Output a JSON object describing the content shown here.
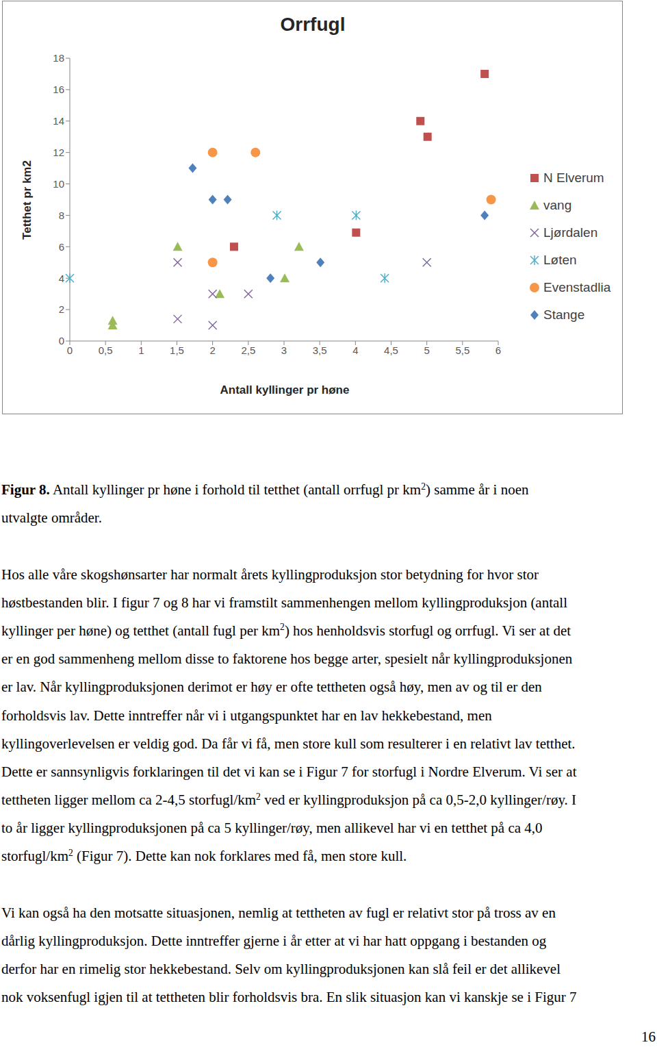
{
  "chart_data": {
    "type": "scatter",
    "title": "Orrfugl",
    "x_label": "Antall kyllinger pr høne",
    "y_label": "Tetthet pr km2",
    "xlim": [
      0,
      6
    ],
    "xticks": [
      0,
      {
        "value": 0.5,
        "label": "0,5"
      },
      1,
      {
        "value": 1.5,
        "label": "1,5"
      },
      2,
      {
        "value": 2.5,
        "label": "2,5"
      },
      3,
      {
        "value": 3.5,
        "label": "3,5"
      },
      4,
      {
        "value": 4.5,
        "label": "4,5"
      },
      5,
      {
        "value": 5.5,
        "label": "5,5"
      },
      6
    ],
    "ylim": [
      0,
      18
    ],
    "yticks": [
      0,
      2,
      4,
      6,
      8,
      10,
      12,
      14,
      16,
      18
    ],
    "grid": false,
    "legend": "right",
    "series": [
      {
        "name": "N Elverum",
        "color": "#C0504D",
        "marker": "square",
        "x": [
          5.81,
          4.91,
          5.01,
          2.3,
          4.01
        ],
        "y": [
          17.0,
          14.0,
          13.0,
          6.0,
          6.9
        ]
      },
      {
        "name": "vang",
        "color": "#9BBB59",
        "marker": "triangle",
        "x": [
          0.6,
          0.6,
          1.51,
          2.1,
          3.21,
          3.01
        ],
        "y": [
          1.3,
          1.0,
          6.0,
          3.0,
          6.0,
          4.0
        ]
      },
      {
        "name": "Ljørdalen",
        "color": "#8064A2",
        "marker": "x",
        "x": [
          1.51,
          1.51,
          2.0,
          2.0,
          2.5,
          5.0
        ],
        "y": [
          5.0,
          1.4,
          3.0,
          1.0,
          3.0,
          5.0
        ]
      },
      {
        "name": "Løten",
        "color": "#4BACC6",
        "marker": "asterisk",
        "x": [
          0.0,
          2.9,
          4.01,
          4.41
        ],
        "y": [
          4.0,
          8.0,
          8.0,
          4.0
        ]
      },
      {
        "name": "Evenstadlia",
        "color": "#F79646",
        "marker": "circle",
        "x": [
          2.0,
          2.6,
          2.0,
          5.9
        ],
        "y": [
          12.0,
          12.0,
          5.0,
          9.0
        ]
      },
      {
        "name": "Stange",
        "color": "#4F81BD",
        "marker": "diamond",
        "x": [
          1.72,
          2.0,
          2.21,
          3.51,
          2.81,
          5.81
        ],
        "y": [
          11.0,
          9.0,
          9.0,
          5.0,
          4.0,
          8.0
        ]
      }
    ]
  },
  "document": {
    "caption": [
      [
        {
          "b": "Figur 8."
        },
        " Antall kyllinger pr høne i forhold til tetthet (antall orrfugl pr km",
        {
          "sup": "2"
        },
        ") samme år i noen"
      ],
      [
        "utvalgte områder."
      ]
    ],
    "paragraphs": [
      [
        [
          "Hos alle våre skogshønsarter har normalt årets kyllingproduksjon stor betydning for hvor stor"
        ],
        [
          "høstbestanden blir. I figur 7 og 8 har vi framstilt sammenhengen mellom kyllingproduksjon (antall"
        ],
        [
          "kyllinger per høne) og tetthet (antall fugl per km",
          {
            "sup": "2"
          },
          ") hos henholdsvis storfugl og orrfugl. Vi ser at det"
        ],
        [
          "er en god sammenheng mellom disse to faktorene hos begge arter, spesielt når kyllingproduksjonen"
        ],
        [
          "er lav. Når kyllingproduksjonen derimot er høy er ofte tettheten også høy, men av og til er den"
        ],
        [
          "forholdsvis lav. Dette inntreffer når vi i utgangspunktet har en lav hekkebestand, men"
        ],
        [
          "kyllingoverlevelsen er veldig god. Da får vi få, men store kull som resulterer i en relativt lav tetthet."
        ],
        [
          "Dette er sannsynligvis forklaringen til det vi kan se i Figur 7 for storfugl i Nordre Elverum. Vi ser at"
        ],
        [
          "tettheten ligger mellom ca 2-4,5 storfugl/km",
          {
            "sup": "2"
          },
          " ved er kyllingproduksjon på ca 0,5-2,0 kyllinger/røy. I"
        ],
        [
          "to år ligger kyllingproduksjonen på ca 5 kyllinger/røy, men allikevel har vi en tetthet på ca 4,0"
        ],
        [
          "storfugl/km",
          {
            "sup": "2"
          },
          " (Figur 7). Dette kan nok forklares med få, men store kull."
        ]
      ],
      [
        [
          "Vi kan også ha den motsatte situasjonen, nemlig at tettheten av fugl er relativt stor på tross av en"
        ],
        [
          "dårlig kyllingproduksjon. Dette inntreffer gjerne i år etter at vi har hatt oppgang i bestanden og"
        ],
        [
          "derfor har en rimelig stor hekkebestand. Selv om kyllingproduksjonen kan slå feil er det allikevel"
        ],
        [
          "nok voksenfugl igjen til at tettheten blir forholdsvis bra. En slik situasjon kan vi kanskje se i Figur 7"
        ]
      ]
    ],
    "page_number": 16
  }
}
